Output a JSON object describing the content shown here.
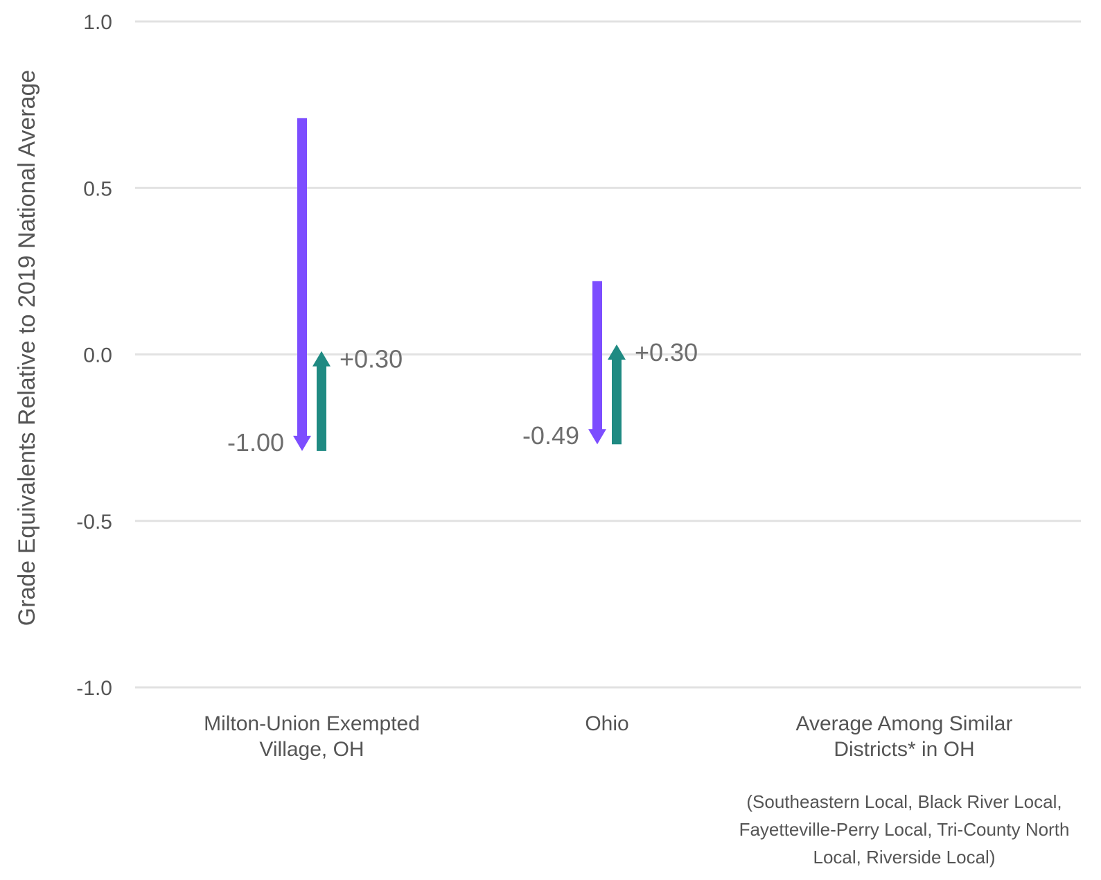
{
  "chart_data": {
    "type": "bar",
    "ylabel": "Grade Equivalents Relative to 2019 National Average",
    "xlabel": "",
    "ylim": [
      -1.0,
      1.0
    ],
    "yticks": [
      1.0,
      0.5,
      0.0,
      -0.5,
      -1.0
    ],
    "ytick_labels": [
      "1.0",
      "0.5",
      "0.0",
      "-0.5",
      "-1.0"
    ],
    "grid": true,
    "categories": [
      {
        "lines": [
          "Milton-Union Exempted",
          "Village, OH"
        ],
        "note_lines": []
      },
      {
        "lines": [
          "Ohio"
        ],
        "note_lines": []
      },
      {
        "lines": [
          "Average Among Similar",
          "Districts* in OH"
        ],
        "note_lines": [
          "(Southeastern Local, Black River Local,",
          "Fayetteville-Perry Local, Tri-County North",
          "Local, Riverside Local)"
        ]
      }
    ],
    "series": [
      {
        "color": "#7c4dff",
        "direction": "down",
        "points": [
          {
            "start": 0.71,
            "end": -0.29,
            "label": "-1.00"
          },
          {
            "start": 0.22,
            "end": -0.27,
            "label": "-0.49"
          },
          null
        ]
      },
      {
        "color": "#1f8a82",
        "direction": "up",
        "points": [
          {
            "start": -0.29,
            "end": 0.01,
            "label": "+0.30"
          },
          {
            "start": -0.27,
            "end": 0.03,
            "label": "+0.30"
          },
          null
        ]
      }
    ]
  }
}
